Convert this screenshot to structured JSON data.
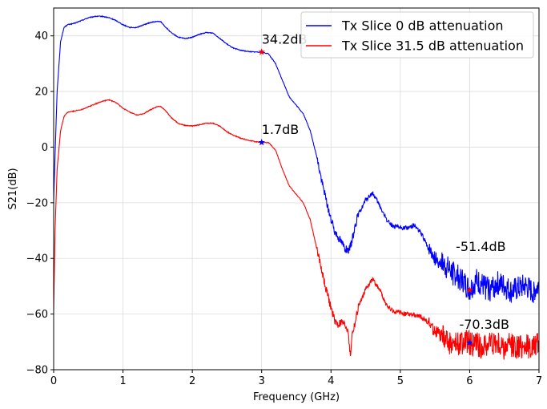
{
  "chart_data": {
    "type": "line",
    "title": "",
    "xlabel": "Frequency (GHz)",
    "ylabel": "S21(dB)",
    "xlim": [
      0,
      7
    ],
    "ylim": [
      -80,
      50
    ],
    "xticks": [
      0,
      1,
      2,
      3,
      4,
      5,
      6,
      7
    ],
    "yticks": [
      -80,
      -60,
      -40,
      -20,
      0,
      20,
      40
    ],
    "xtick_labels": [
      "0",
      "1",
      "2",
      "3",
      "4",
      "5",
      "6",
      "7"
    ],
    "ytick_labels": [
      "−80",
      "−60",
      "−40",
      "−20",
      "0",
      "20",
      "40"
    ],
    "grid": true,
    "legend_position": "top-right",
    "series": [
      {
        "name": "Tx Slice 0 dB attenuation",
        "color": "#0000ff",
        "x": [
          0.0,
          0.02,
          0.05,
          0.1,
          0.15,
          0.2,
          0.3,
          0.4,
          0.5,
          0.6,
          0.7,
          0.8,
          0.9,
          1.0,
          1.1,
          1.2,
          1.3,
          1.4,
          1.5,
          1.55,
          1.6,
          1.7,
          1.8,
          1.9,
          2.0,
          2.1,
          2.2,
          2.3,
          2.4,
          2.5,
          2.6,
          2.7,
          2.8,
          2.9,
          3.0,
          3.1,
          3.2,
          3.3,
          3.4,
          3.5,
          3.6,
          3.7,
          3.8,
          3.9,
          4.0,
          4.05,
          4.1,
          4.15,
          4.2,
          4.25,
          4.3,
          4.35,
          4.4,
          4.5,
          4.6,
          4.7,
          4.8,
          4.9,
          5.0,
          5.1,
          5.2,
          5.3,
          5.4,
          5.5,
          5.6,
          5.7,
          5.8,
          5.9,
          6.0,
          6.1,
          6.2,
          6.3,
          6.4,
          6.5,
          6.6,
          6.7,
          6.8,
          6.9,
          7.0
        ],
        "y": [
          -19.0,
          -3.0,
          20.0,
          38.0,
          43.0,
          44.0,
          44.5,
          45.5,
          46.5,
          47.0,
          47.0,
          46.5,
          45.5,
          44.0,
          43.0,
          43.0,
          44.0,
          44.8,
          45.2,
          45.0,
          43.5,
          41.0,
          39.5,
          39.0,
          39.5,
          40.5,
          41.2,
          41.0,
          39.0,
          37.0,
          35.5,
          34.8,
          34.4,
          34.2,
          34.2,
          33.5,
          30.0,
          24.0,
          18.0,
          15.0,
          12.0,
          6.0,
          -4.0,
          -16.0,
          -26.0,
          -30.0,
          -32.0,
          -34.0,
          -36.0,
          -38.0,
          -34.0,
          -28.0,
          -24.0,
          -19.0,
          -16.5,
          -21.0,
          -26.0,
          -28.5,
          -29.0,
          -29.0,
          -28.0,
          -31.0,
          -36.0,
          -40.0,
          -42.0,
          -44.0,
          -46.0,
          -48.0,
          -51.4,
          -48.0,
          -50.0,
          -51.0,
          -49.0,
          -50.0,
          -52.0,
          -51.0,
          -50.0,
          -52.0,
          -50.0
        ]
      },
      {
        "name": "Tx Slice 31.5 dB attenuation",
        "color": "#ff0000",
        "x": [
          0.0,
          0.02,
          0.05,
          0.1,
          0.15,
          0.2,
          0.3,
          0.4,
          0.5,
          0.6,
          0.7,
          0.8,
          0.9,
          1.0,
          1.1,
          1.2,
          1.3,
          1.4,
          1.5,
          1.55,
          1.6,
          1.7,
          1.8,
          1.9,
          2.0,
          2.1,
          2.2,
          2.3,
          2.4,
          2.5,
          2.6,
          2.7,
          2.8,
          2.9,
          3.0,
          3.1,
          3.2,
          3.3,
          3.4,
          3.5,
          3.6,
          3.7,
          3.8,
          3.9,
          4.0,
          4.05,
          4.1,
          4.15,
          4.2,
          4.25,
          4.28,
          4.3,
          4.35,
          4.4,
          4.5,
          4.6,
          4.7,
          4.8,
          4.9,
          5.0,
          5.1,
          5.2,
          5.3,
          5.4,
          5.5,
          5.6,
          5.7,
          5.8,
          5.9,
          6.0,
          6.1,
          6.2,
          6.3,
          6.4,
          6.5,
          6.6,
          6.7,
          6.8,
          6.9,
          7.0
        ],
        "y": [
          -59.0,
          -30.0,
          -8.0,
          6.0,
          11.0,
          12.5,
          13.0,
          13.5,
          14.5,
          15.5,
          16.5,
          17.0,
          16.0,
          14.0,
          12.5,
          11.5,
          12.0,
          13.5,
          14.6,
          14.5,
          13.5,
          10.5,
          8.5,
          7.8,
          7.6,
          8.0,
          8.6,
          8.6,
          7.5,
          5.5,
          4.2,
          3.2,
          2.5,
          2.0,
          1.7,
          1.6,
          -1.0,
          -8.0,
          -14.0,
          -17.0,
          -20.0,
          -26.0,
          -37.0,
          -48.0,
          -58.0,
          -62.0,
          -64.0,
          -63.0,
          -64.0,
          -66.0,
          -76.0,
          -68.0,
          -63.0,
          -57.0,
          -51.0,
          -47.5,
          -51.0,
          -57.0,
          -59.0,
          -59.5,
          -60.0,
          -60.5,
          -61.0,
          -63.0,
          -66.0,
          -68.0,
          -70.0,
          -71.0,
          -70.0,
          -70.3,
          -71.0,
          -72.0,
          -70.0,
          -71.0,
          -72.0,
          -71.0,
          -72.0,
          -71.0,
          -72.0,
          -71.0
        ]
      }
    ],
    "annotations": [
      {
        "text": "34.2dB",
        "x": 3.0,
        "y": 34.2,
        "color": "#ff0000",
        "text_dx_data": 0.0,
        "text_dy_data": 3.0
      },
      {
        "text": "1.7dB",
        "x": 3.0,
        "y": 1.7,
        "color": "#0000ff",
        "text_dx_data": 0.0,
        "text_dy_data": 3.0
      },
      {
        "text": "-51.4dB",
        "x": 6.0,
        "y": -51.4,
        "color": "#ff0000",
        "text_dx_data": -0.2,
        "text_dy_data": 14.0
      },
      {
        "text": "-70.3dB",
        "x": 6.0,
        "y": -70.3,
        "color": "#0000ff",
        "text_dx_data": -0.15,
        "text_dy_data": 5.0
      }
    ]
  }
}
